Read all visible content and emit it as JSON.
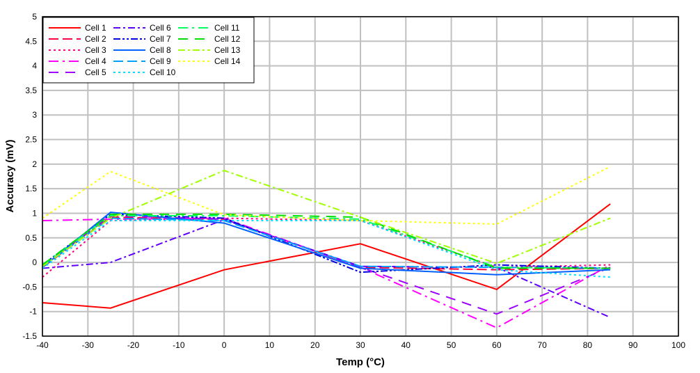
{
  "chart_data": {
    "type": "line",
    "title": "",
    "xlabel": "Temp (°C)",
    "ylabel": "Accuracy (mV)",
    "xlim": [
      -40,
      100
    ],
    "ylim": [
      -1.5,
      5
    ],
    "xticks": [
      -40,
      -30,
      -20,
      -10,
      0,
      10,
      20,
      30,
      40,
      50,
      60,
      70,
      80,
      90,
      100
    ],
    "yticks": [
      -1.5,
      -1,
      -0.5,
      0,
      0.5,
      1,
      1.5,
      2,
      2.5,
      3,
      3.5,
      4,
      4.5,
      5
    ],
    "grid": true,
    "legend_position": "top-left",
    "x": [
      -40,
      -25,
      0,
      30,
      60,
      85
    ],
    "series": [
      {
        "name": "Cell 1",
        "color": "#ff0000",
        "dash": "",
        "values": [
          -0.82,
          -0.93,
          -0.15,
          0.38,
          -0.55,
          1.19
        ]
      },
      {
        "name": "Cell 2",
        "color": "#ff0040",
        "dash": "14,6",
        "values": [
          -0.1,
          0.92,
          0.88,
          -0.1,
          -0.15,
          -0.12
        ]
      },
      {
        "name": "Cell 3",
        "color": "#ff0080",
        "dash": "3,4",
        "values": [
          -0.3,
          0.85,
          0.9,
          0.85,
          -0.1,
          -0.05
        ]
      },
      {
        "name": "Cell 4",
        "color": "#ff00ff",
        "dash": "14,6,3,6",
        "values": [
          0.85,
          0.88,
          0.9,
          -0.1,
          -1.33,
          -0.05
        ]
      },
      {
        "name": "Cell 5",
        "color": "#a000ff",
        "dash": "14,10",
        "values": [
          -0.1,
          0.95,
          0.88,
          -0.1,
          -1.05,
          -0.1
        ]
      },
      {
        "name": "Cell 6",
        "color": "#6000ff",
        "dash": "10,4,3,4",
        "values": [
          -0.12,
          0.0,
          0.87,
          -0.08,
          -0.1,
          -1.12
        ]
      },
      {
        "name": "Cell 7",
        "color": "#0000e0",
        "dash": "10,3,3,3,3,3",
        "values": [
          -0.05,
          0.98,
          0.9,
          -0.2,
          -0.05,
          -0.12
        ]
      },
      {
        "name": "Cell 8",
        "color": "#0060ff",
        "dash": "",
        "values": [
          -0.1,
          1.02,
          0.8,
          -0.12,
          -0.25,
          -0.15
        ]
      },
      {
        "name": "Cell 9",
        "color": "#00a0ff",
        "dash": "14,6",
        "values": [
          -0.08,
          0.9,
          0.85,
          -0.08,
          -0.1,
          -0.12
        ]
      },
      {
        "name": "Cell 10",
        "color": "#00e0ff",
        "dash": "3,4",
        "values": [
          -0.12,
          0.85,
          0.85,
          0.85,
          -0.15,
          -0.3
        ]
      },
      {
        "name": "Cell 11",
        "color": "#00ff60",
        "dash": "14,6,3,6",
        "values": [
          -0.05,
          0.95,
          0.95,
          0.88,
          -0.1,
          -0.12
        ]
      },
      {
        "name": "Cell 12",
        "color": "#00e000",
        "dash": "14,10",
        "values": [
          -0.05,
          0.98,
          0.98,
          0.92,
          -0.12,
          -0.12
        ]
      },
      {
        "name": "Cell 13",
        "color": "#a0ff00",
        "dash": "10,4,3,4",
        "values": [
          -0.08,
          0.9,
          1.87,
          0.92,
          -0.02,
          0.9
        ]
      },
      {
        "name": "Cell 14",
        "color": "#ffff00",
        "dash": "3,4",
        "values": [
          0.9,
          1.85,
          0.97,
          0.85,
          0.78,
          1.95
        ]
      }
    ]
  }
}
